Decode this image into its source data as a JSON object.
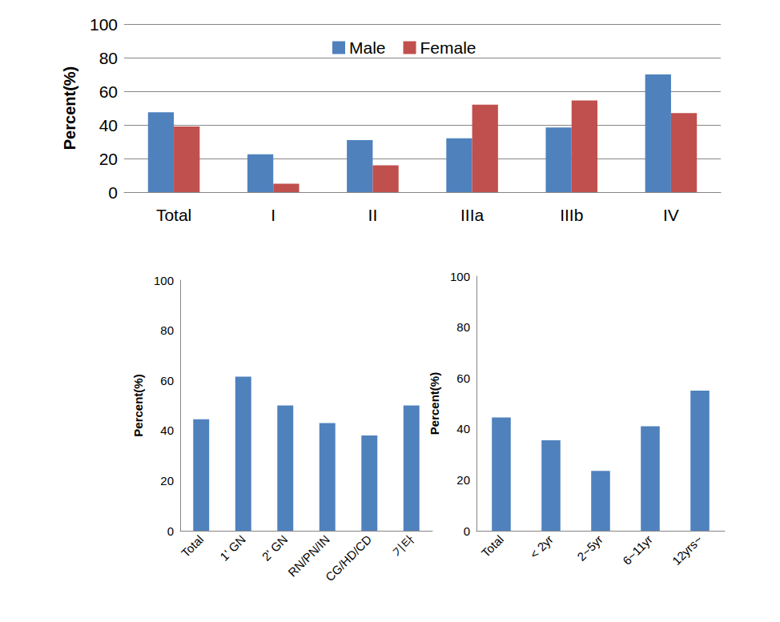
{
  "chart_data": [
    {
      "type": "bar",
      "y_label": "Percent(%)",
      "categories": [
        "Total",
        "I",
        "II",
        "IIIa",
        "IIIb",
        "IV"
      ],
      "series": [
        {
          "name": "Male",
          "color": "#4F81BD",
          "values": [
            47.5,
            22.5,
            31,
            32,
            38.5,
            70
          ]
        },
        {
          "name": "Female",
          "color": "#C0504D",
          "values": [
            39,
            5,
            16,
            52,
            54.5,
            47
          ]
        }
      ],
      "ylim": [
        0,
        100
      ],
      "yticks": [
        0,
        20,
        40,
        60,
        80,
        100
      ],
      "grid": true,
      "legend": "top"
    },
    {
      "type": "bar",
      "y_label": "Percent(%)",
      "categories": [
        "Total",
        "1' GN",
        "2' GN",
        "RN/PN/IN",
        "CG/HD/CD",
        "기타"
      ],
      "values": [
        44.5,
        61.5,
        50,
        43,
        38,
        50
      ],
      "color": "#4F81BD",
      "ylim": [
        0,
        100
      ],
      "yticks": [
        0,
        20,
        40,
        60,
        80,
        100
      ],
      "grid": false
    },
    {
      "type": "bar",
      "y_label": "Percent(%)",
      "categories": [
        "Total",
        "< 2yr",
        "2~5yr",
        "6~11yr",
        "12yrs~"
      ],
      "values": [
        44.5,
        35.5,
        23.5,
        41,
        55
      ],
      "color": "#4F81BD",
      "ylim": [
        0,
        100
      ],
      "yticks": [
        0,
        20,
        40,
        60,
        80,
        100
      ],
      "grid": false
    }
  ]
}
